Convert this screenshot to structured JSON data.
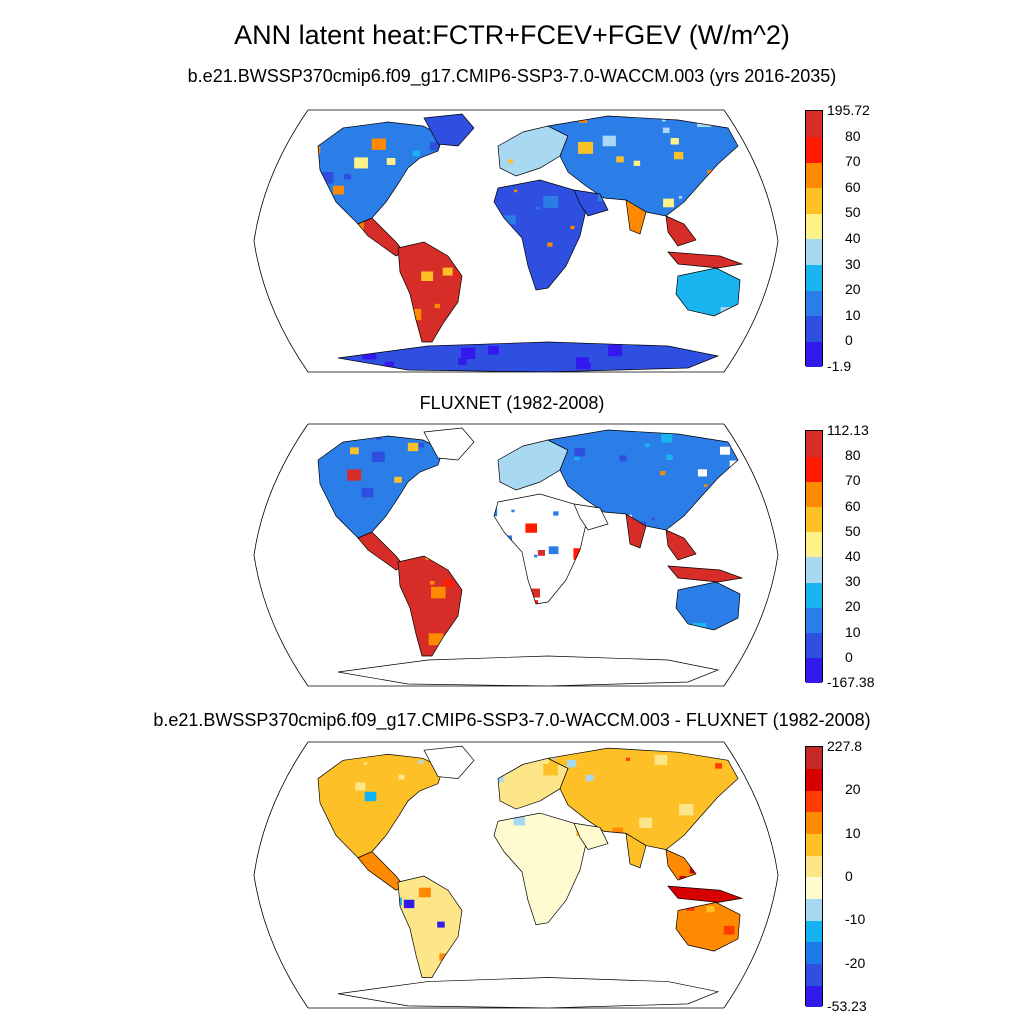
{
  "figure": {
    "title": "ANN latent heat:FCTR+FCEV+FGEV (W/m^2)"
  },
  "panels": [
    {
      "title": "b.e21.BWSSP370cmip6.f09_g17.CMIP6-SSP3-7.0-WACCM.003 (yrs 2016-2035)",
      "colorbar": {
        "colors": [
          "#3319ee",
          "#2f4fe0",
          "#2b7ee8",
          "#1ab4f0",
          "#a8d8f2",
          "#fdf18a",
          "#fdc027",
          "#fd8a00",
          "#ff1a00",
          "#d62d28"
        ],
        "labels": [
          "-1.9",
          "0",
          "10",
          "20",
          "30",
          "40",
          "50",
          "60",
          "70",
          "80",
          "195.72"
        ]
      },
      "map_palette": "model"
    },
    {
      "title": "FLUXNET (1982-2008)",
      "colorbar": {
        "colors": [
          "#3319ee",
          "#2f4fe0",
          "#2b7ee8",
          "#1ab4f0",
          "#a8d8f2",
          "#fdf18a",
          "#fdc027",
          "#fd8a00",
          "#ff1a00",
          "#d62d28"
        ],
        "labels": [
          "-167.38",
          "0",
          "10",
          "20",
          "30",
          "40",
          "50",
          "60",
          "70",
          "80",
          "112.13"
        ]
      },
      "map_palette": "obs"
    },
    {
      "title": "b.e21.BWSSP370cmip6.f09_g17.CMIP6-SSP3-7.0-WACCM.003 - FLUXNET (1982-2008)",
      "colorbar": {
        "colors": [
          "#3319ee",
          "#2f4fe0",
          "#1e7ae8",
          "#13b2f0",
          "#a8d8f2",
          "#fefbd0",
          "#fde68a",
          "#fdc027",
          "#fd8a00",
          "#ff3c00",
          "#d60000",
          "#c42828"
        ],
        "labels": [
          "-53.23",
          "",
          "-20",
          "",
          "-10",
          "",
          "0",
          "",
          "10",
          "",
          "20",
          "",
          "227.8"
        ]
      },
      "map_palette": "diff"
    }
  ]
}
